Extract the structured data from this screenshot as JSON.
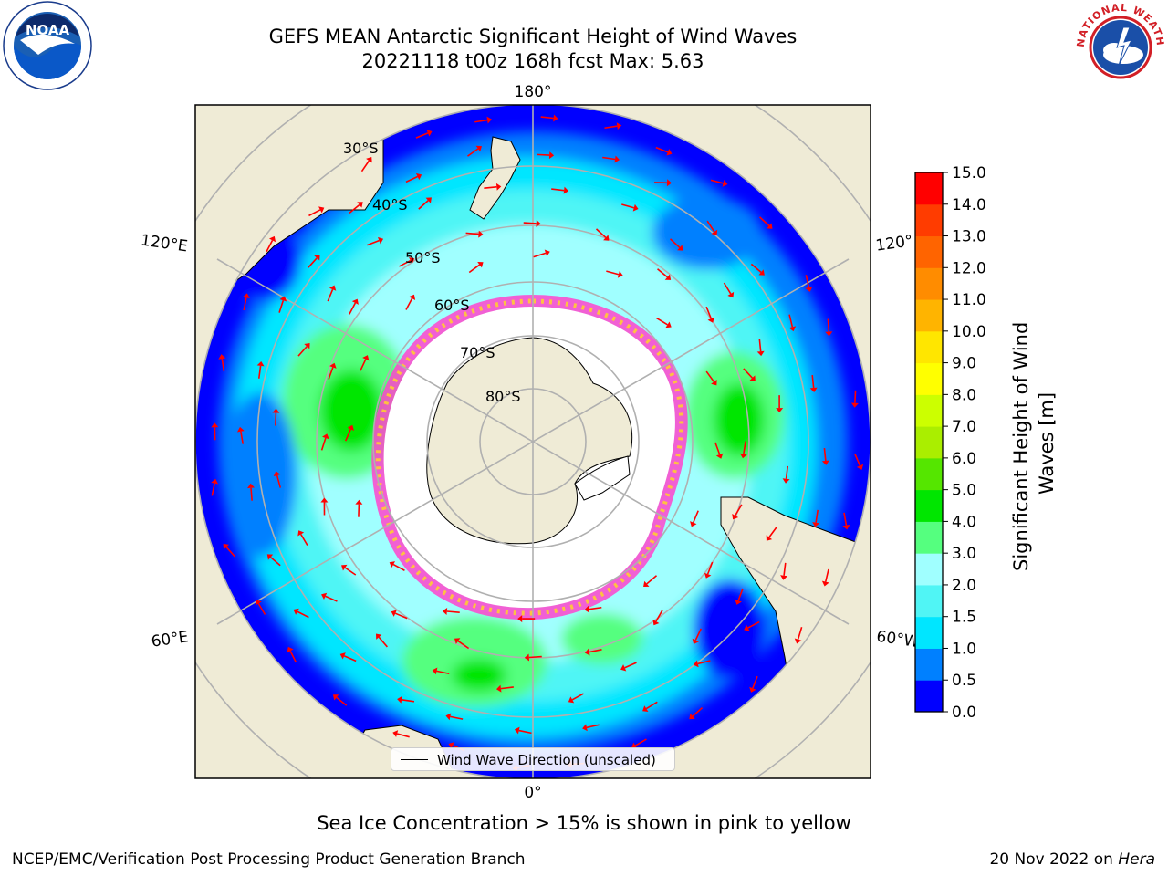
{
  "header": {
    "title_line1": "GEFS MEAN Antarctic Significant Height of Wind Waves",
    "title_line2": "20221118 t00z 168h fcst   Max: 5.63"
  },
  "logos": {
    "left": "NOAA",
    "right": "NATIONAL WEATHER SERVICE"
  },
  "map": {
    "projection": "south-polar-stereographic",
    "longitude_labels": {
      "top": "180°",
      "bottom": "0°",
      "upper_left": "120°E",
      "upper_right": "120°",
      "lower_left": "60°E",
      "lower_right": "60°W"
    },
    "latitude_labels": [
      "30°S",
      "40°S",
      "50°S",
      "60°S",
      "70°S",
      "80°S"
    ],
    "colors": {
      "land": "#efebd6",
      "ice": "#ffffff",
      "arrow": "#ff0000",
      "graticule": "#b0b0b0"
    }
  },
  "legend": {
    "label": "Wind Wave Direction (unscaled)"
  },
  "colorbar": {
    "label": "Significant Height of Wind Waves [m]",
    "ticks": [
      "0.0",
      "0.5",
      "1.0",
      "1.5",
      "2.0",
      "3.0",
      "4.0",
      "5.0",
      "6.0",
      "7.0",
      "8.0",
      "9.0",
      "10.0",
      "11.0",
      "12.0",
      "13.0",
      "14.0",
      "15.0"
    ],
    "colors": [
      "#0000ff",
      "#0080ff",
      "#00e6ff",
      "#50f5f5",
      "#a0ffff",
      "#55ff7f",
      "#00e600",
      "#55e600",
      "#aaee00",
      "#ccff00",
      "#ffff00",
      "#ffe600",
      "#ffb400",
      "#ff8c00",
      "#ff6400",
      "#ff3c00",
      "#ff0000"
    ]
  },
  "footer": {
    "caption": "Sea Ice Concentration > 15% is shown in pink to yellow",
    "credit_left": "NCEP/EMC/Verification Post Processing Product Generation Branch",
    "credit_date": "20 Nov 2022 on ",
    "credit_host": "Hera"
  }
}
